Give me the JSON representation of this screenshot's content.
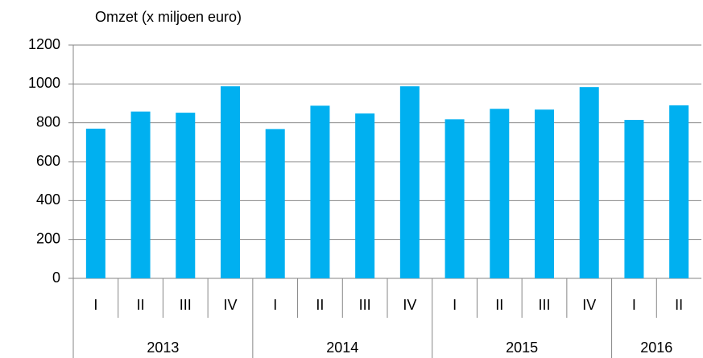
{
  "chart_data": {
    "type": "bar",
    "title": "Omzet (x miljoen euro)",
    "color": "#00b0f0",
    "groups": [
      {
        "label": "2013",
        "categories": [
          "I",
          "II",
          "III",
          "IV"
        ],
        "values": [
          770,
          858,
          852,
          988
        ]
      },
      {
        "label": "2014",
        "categories": [
          "I",
          "II",
          "III",
          "IV"
        ],
        "values": [
          768,
          888,
          848,
          988
        ]
      },
      {
        "label": "2015",
        "categories": [
          "I",
          "II",
          "III",
          "IV"
        ],
        "values": [
          818,
          872,
          868,
          984
        ]
      },
      {
        "label": "2016",
        "categories": [
          "I",
          "II"
        ],
        "values": [
          815,
          890
        ]
      }
    ],
    "ylim": [
      0,
      1200
    ],
    "yticks": [
      0,
      200,
      400,
      600,
      800,
      1000,
      1200
    ],
    "grid": true
  }
}
